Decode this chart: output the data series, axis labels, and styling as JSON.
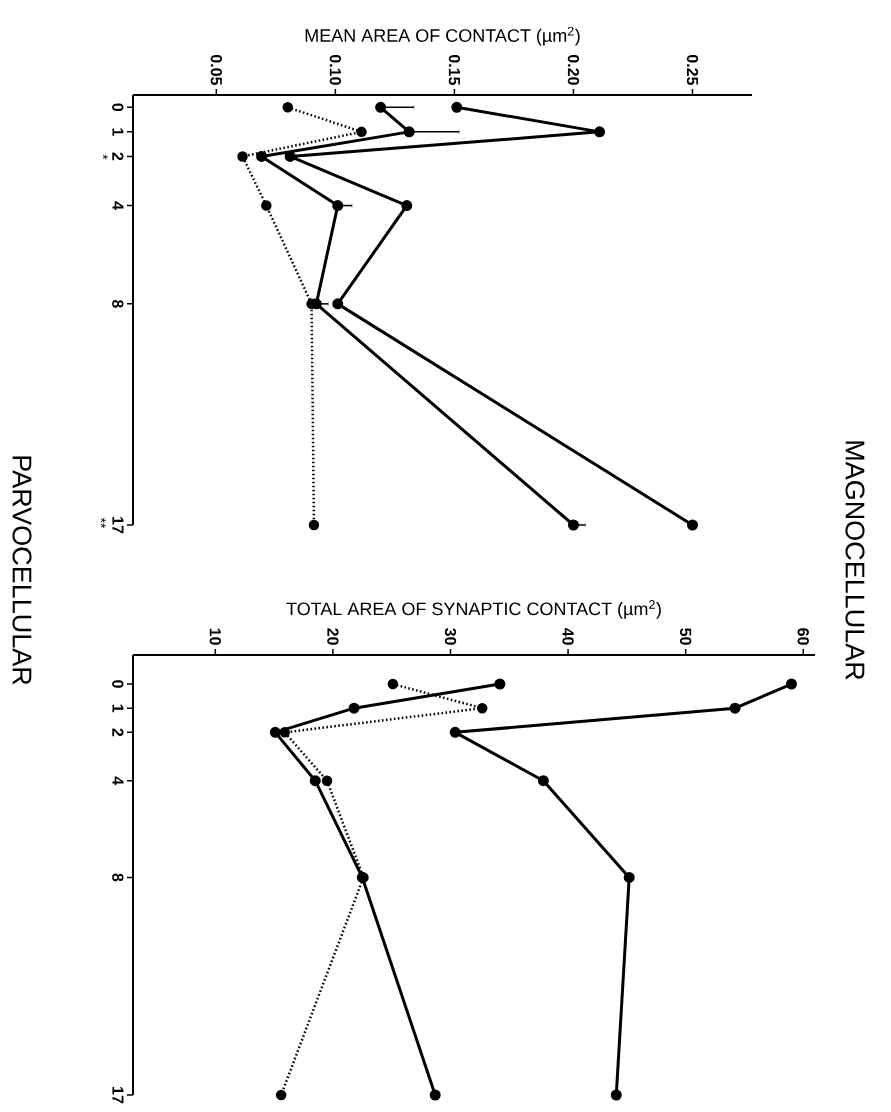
{
  "chart_data": [
    {
      "type": "line",
      "orientation": "horizontal",
      "xlabel": "MEAN AREA OF CONTACT (µm$^{2}$)",
      "x": [
        0,
        1,
        2,
        4,
        8,
        17
      ],
      "series": [
        {
          "color": "#000000",
          "marker": "circle",
          "line_style": "solid",
          "values": [
            0.151,
            0.211,
            0.081,
            0.13,
            0.101,
            0.25
          ]
        },
        {
          "color": "#000000",
          "marker": "circle",
          "line_style": "solid",
          "values": [
            0.119,
            0.131,
            0.069,
            0.101,
            0.092,
            0.2
          ],
          "errors": [
            [
              0.119,
              0.133
            ],
            [
              0.131,
              0.152
            ],
            null,
            [
              0.101,
              0.107
            ],
            [
              0.092,
              0.097
            ],
            [
              0.2,
              0.205
            ]
          ]
        },
        {
          "color": "#000000",
          "marker": "circle",
          "line_style": "dotted",
          "values": [
            0.08,
            0.111,
            0.061,
            0.071,
            0.09,
            0.091
          ]
        }
      ],
      "xlim": [
        0.015,
        0.275
      ],
      "xticks": [
        0.05,
        {
          "value": 0.1,
          "label": "0.10"
        },
        0.15,
        {
          "value": 0.2,
          "label": "0.20"
        },
        0.25
      ],
      "ylim": [
        17,
        -0.5
      ],
      "yticks": [
        0,
        1,
        2,
        4,
        8,
        17
      ],
      "annotations": [
        "MAGNOCELLULAR",
        "PARVOCELLULAR",
        "*",
        "**"
      ]
    },
    {
      "type": "line",
      "orientation": "horizontal",
      "xlabel": "TOTAL AREA OF SYNAPTIC CONTACT (µm$^{2}$)",
      "x": [
        0,
        1,
        2,
        4,
        8,
        17
      ],
      "series": [
        {
          "color": "#000000",
          "marker": "circle",
          "line_style": "solid",
          "values": [
            34.2,
            21.8,
            15.1,
            18.5,
            22.5,
            28.7
          ]
        },
        {
          "color": "#000000",
          "marker": "circle",
          "line_style": "solid",
          "values": [
            59.0,
            54.2,
            30.4,
            37.9,
            45.2,
            44.1
          ]
        },
        {
          "color": "#000000",
          "marker": "circle",
          "line_style": "dotted",
          "values": [
            25.1,
            32.7,
            15.9,
            19.5,
            22.6,
            15.6
          ]
        }
      ],
      "xlim": [
        3,
        61
      ],
      "xticks": [
        10,
        20,
        30,
        40,
        50,
        60
      ],
      "ylim": [
        17,
        -1.2
      ],
      "yticks": [
        0,
        1,
        2,
        4,
        8,
        17
      ]
    }
  ]
}
